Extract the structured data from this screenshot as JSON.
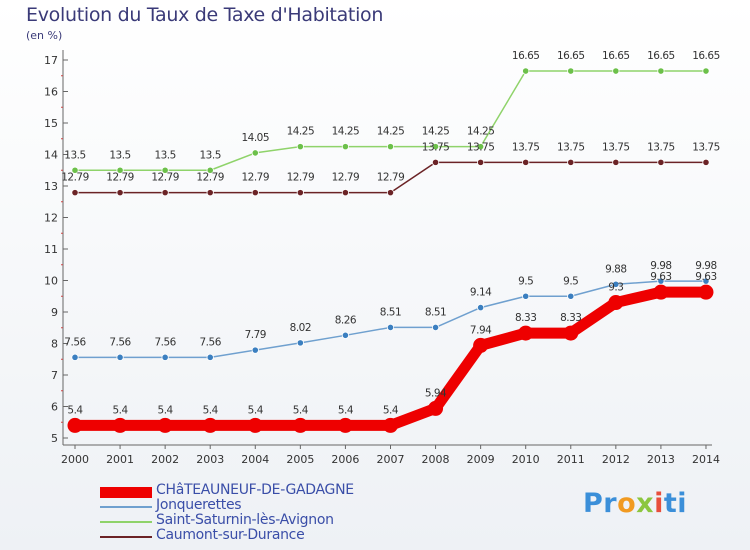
{
  "chart_data": {
    "type": "line",
    "title": "Evolution du Taux de Taxe d'Habitation",
    "ylabel": "(en %)",
    "xlabel": "",
    "x": [
      "2000",
      "2001",
      "2002",
      "2003",
      "2004",
      "2005",
      "2006",
      "2007",
      "2008",
      "2009",
      "2010",
      "2011",
      "2012",
      "2013",
      "2014"
    ],
    "ylim": [
      5,
      17
    ],
    "yticks": [
      5,
      6,
      7,
      8,
      9,
      10,
      11,
      12,
      13,
      14,
      15,
      16,
      17
    ],
    "grid": false,
    "legend_placement": "bottom-left",
    "series": [
      {
        "name": "CHâTEAUNEUF-DE-GADAGNE",
        "color": "#ee0000",
        "values": [
          5.4,
          5.4,
          5.4,
          5.4,
          5.4,
          5.4,
          5.4,
          5.4,
          5.94,
          7.94,
          8.33,
          8.33,
          9.3,
          9.63,
          9.63
        ],
        "labels": [
          "5.4",
          "5.4",
          "5.4",
          "5.4",
          "5.4",
          "5.4",
          "5.4",
          "5.4",
          "5.94",
          "7.94",
          "8.33",
          "8.33",
          "9.3",
          "9.63",
          "9.63"
        ]
      },
      {
        "name": "Jonquerettes",
        "color": "#6fa0cf",
        "values": [
          7.56,
          7.56,
          7.56,
          7.56,
          7.79,
          8.02,
          8.26,
          8.51,
          8.51,
          9.14,
          9.5,
          9.5,
          9.88,
          9.98,
          9.98
        ],
        "labels": [
          "7.56",
          "7.56",
          "7.56",
          "7.56",
          "7.79",
          "8.02",
          "8.26",
          "8.51",
          "8.51",
          "9.14",
          "9.5",
          "9.5",
          "9.88",
          "9.98",
          "9.98"
        ]
      },
      {
        "name": "Saint-Saturnin-lès-Avignon",
        "color": "#8fd36a",
        "values": [
          13.5,
          13.5,
          13.5,
          13.5,
          14.05,
          14.25,
          14.25,
          14.25,
          14.25,
          14.25,
          16.65,
          16.65,
          16.65,
          16.65,
          16.65
        ],
        "labels": [
          "13.5",
          "13.5",
          "13.5",
          "13.5",
          "14.05",
          "14.25",
          "14.25",
          "14.25",
          "14.25",
          "14.25",
          "16.65",
          "16.65",
          "16.65",
          "16.65",
          "16.65"
        ]
      },
      {
        "name": "Caumont-sur-Durance",
        "color": "#6b2326",
        "values": [
          12.79,
          12.79,
          12.79,
          12.79,
          12.79,
          12.79,
          12.79,
          12.79,
          13.75,
          13.75,
          13.75,
          13.75,
          13.75,
          13.75,
          13.75
        ],
        "labels": [
          "12.79",
          "12.79",
          "12.79",
          "12.79",
          "12.79",
          "12.79",
          "12.79",
          "12.79",
          "13.75",
          "13.75",
          "13.75",
          "13.75",
          "13.75",
          "13.75",
          "13.75"
        ]
      }
    ]
  },
  "logo": {
    "letters": [
      "Pr",
      "o",
      "x",
      "i",
      "ti"
    ]
  }
}
